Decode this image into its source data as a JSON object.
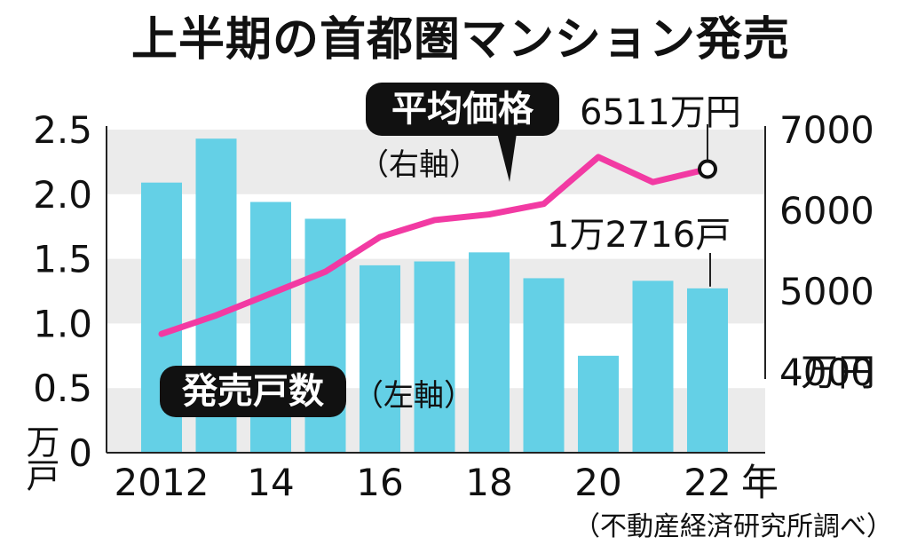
{
  "title": "上半期の首都圏マンション発売",
  "source": "（不動産経済研究所調べ）",
  "labels": {
    "price_series": "平均価格",
    "price_axis_note": "（右軸）",
    "units_series": "発売戸数",
    "units_axis_note": "（左軸）",
    "price_callout": "6511万円",
    "units_callout": "1万2716戸",
    "left_unit": "万戸",
    "right_unit": "万円",
    "year_suffix": "年"
  },
  "colors": {
    "bar": "#64d0e6",
    "line": "#f23aa3",
    "band": "#ebebeb"
  },
  "chart_data": {
    "type": "bar+line",
    "x": [
      2012,
      2013,
      2014,
      2015,
      2016,
      2017,
      2018,
      2019,
      2020,
      2021,
      2022
    ],
    "x_tick_labels": [
      "2012",
      "",
      "14",
      "",
      "16",
      "",
      "18",
      "",
      "20",
      "",
      "22"
    ],
    "series": [
      {
        "name": "発売戸数",
        "type": "bar",
        "axis": "left",
        "values": [
          2.09,
          2.43,
          1.94,
          1.81,
          1.45,
          1.48,
          1.55,
          1.35,
          0.75,
          1.33,
          1.2716
        ]
      },
      {
        "name": "平均価格",
        "type": "line",
        "axis": "right",
        "values": [
          4470,
          4700,
          4970,
          5240,
          5670,
          5880,
          5950,
          6080,
          6660,
          6350,
          6511
        ]
      }
    ],
    "left_axis": {
      "range": [
        0,
        2.5
      ],
      "ticks": [
        "0",
        "0.5",
        "1.0",
        "1.5",
        "2.0",
        "2.5"
      ]
    },
    "right_axis": {
      "range": [
        3000,
        7000
      ],
      "ticks": [
        "4000",
        "5000",
        "6000",
        "7000"
      ]
    }
  }
}
